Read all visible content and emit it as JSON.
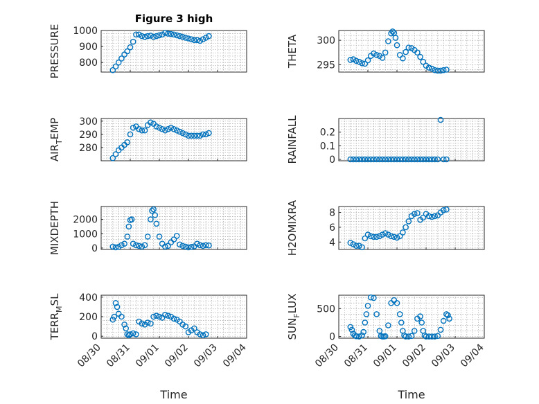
{
  "figure_title": "Figure 3 high",
  "colors": {
    "marker": "#0072bd",
    "axis": "#262626",
    "grid": "#a8a8a8"
  },
  "x_ticks": [
    "08/30",
    "08/31",
    "09/01",
    "09/02",
    "09/03",
    "09/04"
  ],
  "xlabel": "Time",
  "chart_data": [
    {
      "type": "scatter",
      "ylabel": "PRESSURE",
      "xlim": [
        "08/30",
        "09/04"
      ],
      "ylim": [
        740,
        1000
      ],
      "yticks": [
        800,
        900,
        1000
      ],
      "x_days": [
        0.4,
        0.5,
        0.6,
        0.7,
        0.8,
        0.9,
        1.0,
        1.1,
        1.2,
        1.3,
        1.4,
        1.5,
        1.6,
        1.7,
        1.8,
        1.9,
        2.0,
        2.1,
        2.2,
        2.3,
        2.4,
        2.5,
        2.6,
        2.7,
        2.8,
        2.9,
        3.0,
        3.1,
        3.2,
        3.3,
        3.4,
        3.5,
        3.6,
        3.7
      ],
      "y": [
        752,
        775,
        800,
        825,
        850,
        870,
        895,
        930,
        975,
        975,
        965,
        960,
        965,
        968,
        960,
        965,
        970,
        975,
        985,
        980,
        978,
        975,
        970,
        965,
        960,
        955,
        950,
        945,
        940,
        940,
        935,
        945,
        955,
        965
      ]
    },
    {
      "type": "scatter",
      "ylabel": "THETA",
      "xlim": [
        "08/30",
        "09/04"
      ],
      "ylim": [
        293.5,
        302
      ],
      "yticks": [
        295,
        300
      ],
      "x_days": [
        0.4,
        0.5,
        0.6,
        0.7,
        0.8,
        0.9,
        1.0,
        1.1,
        1.2,
        1.3,
        1.4,
        1.5,
        1.6,
        1.7,
        1.8,
        1.85,
        1.9,
        1.95,
        2.0,
        2.1,
        2.2,
        2.3,
        2.4,
        2.5,
        2.6,
        2.7,
        2.8,
        2.9,
        3.0,
        3.1,
        3.2,
        3.3,
        3.4,
        3.5,
        3.6,
        3.7
      ],
      "y": [
        296.0,
        296.1,
        295.8,
        295.6,
        295.3,
        295.2,
        295.9,
        296.8,
        297.3,
        297.0,
        296.8,
        296.4,
        297.5,
        299.8,
        301.4,
        301.8,
        301.5,
        300.5,
        299.0,
        297.0,
        296.3,
        297.6,
        298.5,
        298.4,
        298.0,
        297.5,
        296.6,
        295.6,
        294.8,
        294.4,
        294.2,
        293.9,
        293.8,
        293.8,
        293.9,
        294.0
      ]
    },
    {
      "type": "scatter",
      "ylabel": "AIR_TEMP",
      "xlim": [
        "08/30",
        "09/04"
      ],
      "ylim": [
        270,
        302
      ],
      "yticks": [
        280,
        290,
        300
      ],
      "x_days": [
        0.4,
        0.5,
        0.6,
        0.7,
        0.8,
        0.9,
        1.0,
        1.1,
        1.2,
        1.3,
        1.4,
        1.5,
        1.6,
        1.7,
        1.8,
        1.9,
        2.0,
        2.1,
        2.2,
        2.3,
        2.4,
        2.5,
        2.6,
        2.7,
        2.8,
        2.9,
        3.0,
        3.1,
        3.2,
        3.3,
        3.4,
        3.5,
        3.6,
        3.7
      ],
      "y": [
        272,
        275,
        278,
        280,
        282,
        284,
        290,
        295,
        296,
        294,
        293,
        293,
        297,
        299,
        298,
        296,
        295,
        294,
        293,
        294,
        295,
        294,
        293,
        292,
        291,
        290,
        289,
        289,
        289,
        289,
        289,
        290,
        290,
        291
      ]
    },
    {
      "type": "scatter",
      "ylabel": "RAINFALL",
      "xlim": [
        "08/30",
        "09/04"
      ],
      "ylim": [
        -0.01,
        0.3
      ],
      "yticks": [
        0,
        0.1,
        0.2
      ],
      "x_days": [
        0.4,
        0.5,
        0.6,
        0.7,
        0.8,
        0.9,
        1.0,
        1.1,
        1.2,
        1.3,
        1.4,
        1.5,
        1.6,
        1.7,
        1.8,
        1.9,
        2.0,
        2.1,
        2.2,
        2.3,
        2.4,
        2.5,
        2.6,
        2.7,
        2.8,
        2.9,
        3.0,
        3.1,
        3.2,
        3.3,
        3.4,
        3.5,
        3.6,
        3.7
      ],
      "y": [
        0,
        0,
        0,
        0,
        0,
        0,
        0,
        0,
        0,
        0,
        0,
        0,
        0,
        0,
        0,
        0,
        0,
        0,
        0,
        0,
        0,
        0,
        0,
        0,
        0,
        0,
        0,
        0,
        0,
        0,
        0,
        0.29,
        0,
        0
      ]
    },
    {
      "type": "scatter",
      "ylabel": "MIXDEPTH",
      "xlim": [
        "08/30",
        "09/04"
      ],
      "ylim": [
        -100,
        2900
      ],
      "yticks": [
        0,
        1000,
        2000
      ],
      "x_days": [
        0.4,
        0.5,
        0.6,
        0.7,
        0.8,
        0.9,
        0.95,
        1.0,
        1.05,
        1.1,
        1.2,
        1.3,
        1.4,
        1.5,
        1.6,
        1.7,
        1.75,
        1.8,
        1.85,
        1.9,
        2.0,
        2.1,
        2.2,
        2.3,
        2.4,
        2.5,
        2.6,
        2.7,
        2.8,
        2.9,
        3.0,
        3.1,
        3.2,
        3.3,
        3.4,
        3.5,
        3.6,
        3.7
      ],
      "y": [
        100,
        50,
        80,
        200,
        300,
        800,
        1500,
        1950,
        2000,
        300,
        200,
        150,
        100,
        200,
        800,
        2000,
        2600,
        2700,
        2300,
        1700,
        800,
        300,
        100,
        150,
        400,
        600,
        850,
        250,
        150,
        100,
        50,
        80,
        120,
        300,
        200,
        150,
        200,
        180
      ]
    },
    {
      "type": "scatter",
      "ylabel": "H2OMIXRA",
      "xlim": [
        "08/30",
        "09/04"
      ],
      "ylim": [
        3,
        8.8
      ],
      "yticks": [
        4,
        6,
        8
      ],
      "x_days": [
        0.4,
        0.5,
        0.6,
        0.7,
        0.8,
        0.9,
        1.0,
        1.1,
        1.2,
        1.3,
        1.4,
        1.5,
        1.6,
        1.7,
        1.8,
        1.9,
        2.0,
        2.1,
        2.2,
        2.3,
        2.4,
        2.5,
        2.6,
        2.7,
        2.8,
        2.9,
        3.0,
        3.1,
        3.2,
        3.3,
        3.4,
        3.5,
        3.6,
        3.7
      ],
      "y": [
        3.9,
        3.7,
        3.5,
        3.5,
        3.3,
        4.5,
        5.0,
        4.8,
        4.7,
        4.7,
        4.8,
        5.0,
        5.2,
        5.0,
        4.8,
        4.7,
        4.6,
        4.8,
        5.3,
        6.0,
        6.8,
        7.5,
        7.8,
        7.9,
        7.0,
        7.3,
        7.8,
        7.5,
        7.4,
        7.5,
        7.6,
        8.0,
        8.3,
        8.4
      ]
    },
    {
      "type": "scatter",
      "ylabel": "TERR_MSL",
      "xlim": [
        "08/30",
        "09/04"
      ],
      "ylim": [
        -20,
        420
      ],
      "yticks": [
        0,
        200,
        400
      ],
      "x_days": [
        0.4,
        0.45,
        0.5,
        0.55,
        0.6,
        0.7,
        0.8,
        0.85,
        0.9,
        0.95,
        1.0,
        1.1,
        1.2,
        1.3,
        1.4,
        1.5,
        1.6,
        1.7,
        1.8,
        1.9,
        2.0,
        2.1,
        2.2,
        2.3,
        2.4,
        2.5,
        2.6,
        2.7,
        2.8,
        2.9,
        3.0,
        3.1,
        3.2,
        3.3,
        3.4,
        3.5,
        3.6
      ],
      "y": [
        170,
        200,
        340,
        300,
        230,
        200,
        120,
        80,
        20,
        10,
        20,
        30,
        20,
        150,
        130,
        120,
        140,
        130,
        200,
        210,
        200,
        190,
        220,
        210,
        200,
        180,
        170,
        150,
        120,
        100,
        40,
        60,
        80,
        40,
        20,
        10,
        20
      ]
    },
    {
      "type": "scatter",
      "ylabel": "SUN_FLUX",
      "xlim": [
        "08/30",
        "09/04"
      ],
      "ylim": [
        -30,
        740
      ],
      "yticks": [
        0,
        500
      ],
      "x_days": [
        0.4,
        0.45,
        0.5,
        0.55,
        0.6,
        0.7,
        0.8,
        0.85,
        0.9,
        0.95,
        1.0,
        1.1,
        1.2,
        1.3,
        1.4,
        1.45,
        1.5,
        1.55,
        1.6,
        1.7,
        1.8,
        1.9,
        2.0,
        2.1,
        2.15,
        2.2,
        2.25,
        2.3,
        2.4,
        2.5,
        2.6,
        2.7,
        2.8,
        2.85,
        2.9,
        2.95,
        3.0,
        3.1,
        3.2,
        3.3,
        3.4,
        3.5,
        3.6,
        3.7,
        3.75,
        3.8
      ],
      "y": [
        170,
        120,
        50,
        20,
        5,
        0,
        20,
        80,
        250,
        400,
        550,
        700,
        690,
        400,
        100,
        10,
        0,
        0,
        5,
        200,
        600,
        650,
        600,
        400,
        250,
        100,
        20,
        0,
        0,
        10,
        100,
        320,
        360,
        250,
        100,
        20,
        0,
        0,
        0,
        0,
        10,
        120,
        280,
        400,
        380,
        320
      ]
    }
  ]
}
